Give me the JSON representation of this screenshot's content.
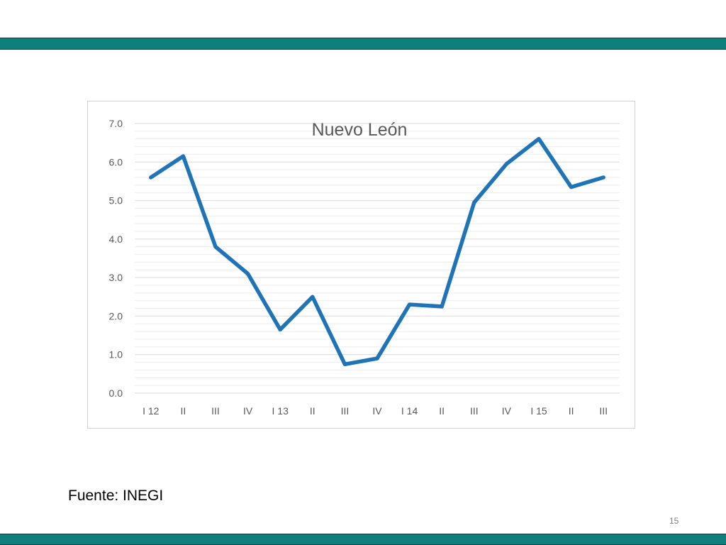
{
  "slide": {
    "source": "Fuente: INEGI",
    "page_number": "15",
    "band_color": "#0f7f7c"
  },
  "chart_data": {
    "type": "line",
    "title": "Nuevo León",
    "xlabel": "",
    "ylabel": "",
    "categories": [
      "I 12",
      "II",
      "III",
      "IV",
      "I 13",
      "II",
      "III",
      "IV",
      "I 14",
      "II",
      "III",
      "IV",
      "I 15",
      "II",
      "III"
    ],
    "series": [
      {
        "values": [
          5.6,
          6.15,
          3.8,
          3.1,
          1.65,
          2.5,
          0.75,
          0.9,
          2.3,
          2.25,
          4.95,
          5.95,
          6.6,
          5.35,
          5.6
        ],
        "color": "#1f73b7"
      }
    ],
    "ylim": [
      0,
      7
    ],
    "yticks": [
      "0.0",
      "1.0",
      "2.0",
      "3.0",
      "4.0",
      "5.0",
      "6.0",
      "7.0"
    ],
    "grid": true,
    "legend": "none"
  }
}
